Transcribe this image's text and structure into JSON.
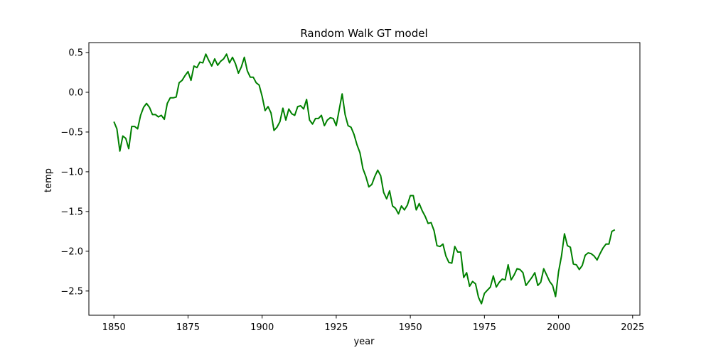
{
  "chart_data": {
    "type": "line",
    "title": "Random Walk GT model",
    "xlabel": "year",
    "ylabel": "temp",
    "xlim": [
      1841.55,
      2027.45
    ],
    "ylim": [
      -2.805,
      0.625
    ],
    "xticks": [
      1850,
      1875,
      1900,
      1925,
      1950,
      1975,
      2000,
      2025
    ],
    "xtick_labels": [
      "1850",
      "1875",
      "1900",
      "1925",
      "1950",
      "1975",
      "2000",
      "2025"
    ],
    "yticks": [
      0.5,
      0.0,
      -0.5,
      -1.0,
      -1.5,
      -2.0,
      -2.5
    ],
    "ytick_labels": [
      "0.5",
      "0.0",
      "−0.5",
      "−1.0",
      "−1.5",
      "−2.0",
      "−2.5"
    ],
    "grid": false,
    "series": [
      {
        "color": "#008000",
        "x": [
          1850,
          1851,
          1852,
          1853,
          1854,
          1855,
          1856,
          1857,
          1858,
          1859,
          1860,
          1861,
          1862,
          1863,
          1864,
          1865,
          1866,
          1867,
          1868,
          1869,
          1870,
          1871,
          1872,
          1873,
          1874,
          1875,
          1876,
          1877,
          1878,
          1879,
          1880,
          1881,
          1882,
          1883,
          1884,
          1885,
          1886,
          1887,
          1888,
          1889,
          1890,
          1891,
          1892,
          1893,
          1894,
          1895,
          1896,
          1897,
          1898,
          1899,
          1900,
          1901,
          1902,
          1903,
          1904,
          1905,
          1906,
          1907,
          1908,
          1909,
          1910,
          1911,
          1912,
          1913,
          1914,
          1915,
          1916,
          1917,
          1918,
          1919,
          1920,
          1921,
          1922,
          1923,
          1924,
          1925,
          1926,
          1927,
          1928,
          1929,
          1930,
          1931,
          1932,
          1933,
          1934,
          1935,
          1936,
          1937,
          1938,
          1939,
          1940,
          1941,
          1942,
          1943,
          1944,
          1945,
          1946,
          1947,
          1948,
          1949,
          1950,
          1951,
          1952,
          1953,
          1954,
          1955,
          1956,
          1957,
          1958,
          1959,
          1960,
          1961,
          1962,
          1963,
          1964,
          1965,
          1966,
          1967,
          1968,
          1969,
          1970,
          1971,
          1972,
          1973,
          1974,
          1975,
          1976,
          1977,
          1978,
          1979,
          1980,
          1981,
          1982,
          1983,
          1984,
          1985,
          1986,
          1987,
          1988,
          1989,
          1990,
          1991,
          1992,
          1993,
          1994,
          1995,
          1996,
          1997,
          1998,
          1999,
          2000,
          2001,
          2002,
          2003,
          2004,
          2005,
          2006,
          2007,
          2008,
          2009,
          2010,
          2011,
          2012,
          2013,
          2014,
          2015,
          2016,
          2017,
          2018,
          2019
        ],
        "y": [
          -0.37,
          -0.46,
          -0.74,
          -0.55,
          -0.58,
          -0.71,
          -0.43,
          -0.43,
          -0.46,
          -0.29,
          -0.19,
          -0.14,
          -0.19,
          -0.28,
          -0.28,
          -0.31,
          -0.29,
          -0.34,
          -0.14,
          -0.07,
          -0.07,
          -0.06,
          0.12,
          0.15,
          0.21,
          0.26,
          0.15,
          0.33,
          0.31,
          0.38,
          0.37,
          0.48,
          0.4,
          0.33,
          0.42,
          0.34,
          0.39,
          0.42,
          0.48,
          0.37,
          0.44,
          0.36,
          0.24,
          0.32,
          0.44,
          0.27,
          0.19,
          0.19,
          0.12,
          0.09,
          -0.05,
          -0.23,
          -0.18,
          -0.26,
          -0.48,
          -0.44,
          -0.37,
          -0.2,
          -0.35,
          -0.21,
          -0.27,
          -0.29,
          -0.18,
          -0.17,
          -0.21,
          -0.09,
          -0.35,
          -0.4,
          -0.33,
          -0.33,
          -0.29,
          -0.42,
          -0.35,
          -0.32,
          -0.33,
          -0.42,
          -0.22,
          -0.02,
          -0.28,
          -0.42,
          -0.44,
          -0.53,
          -0.66,
          -0.76,
          -0.96,
          -1.06,
          -1.19,
          -1.16,
          -1.06,
          -0.98,
          -1.05,
          -1.26,
          -1.34,
          -1.24,
          -1.43,
          -1.46,
          -1.53,
          -1.43,
          -1.48,
          -1.42,
          -1.3,
          -1.3,
          -1.48,
          -1.4,
          -1.49,
          -1.56,
          -1.65,
          -1.64,
          -1.74,
          -1.93,
          -1.94,
          -1.91,
          -2.06,
          -2.14,
          -2.15,
          -1.94,
          -2.01,
          -2.01,
          -2.33,
          -2.27,
          -2.44,
          -2.38,
          -2.41,
          -2.58,
          -2.66,
          -2.53,
          -2.49,
          -2.45,
          -2.31,
          -2.45,
          -2.39,
          -2.35,
          -2.36,
          -2.17,
          -2.36,
          -2.3,
          -2.22,
          -2.23,
          -2.27,
          -2.43,
          -2.38,
          -2.33,
          -2.27,
          -2.43,
          -2.39,
          -2.22,
          -2.3,
          -2.38,
          -2.43,
          -2.57,
          -2.26,
          -2.06,
          -1.78,
          -1.93,
          -1.95,
          -2.16,
          -2.17,
          -2.23,
          -2.18,
          -2.05,
          -2.02,
          -2.03,
          -2.06,
          -2.11,
          -2.03,
          -1.96,
          -1.91,
          -1.91,
          -1.75,
          -1.73
        ]
      }
    ]
  }
}
